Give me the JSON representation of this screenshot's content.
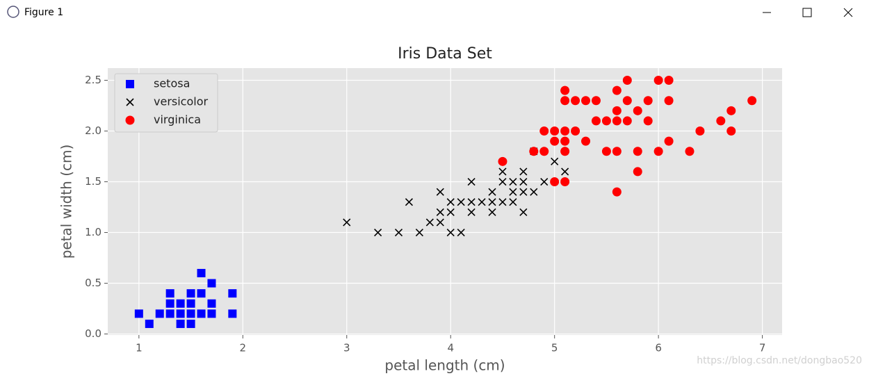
{
  "window": {
    "title": "Figure 1"
  },
  "watermark": "https://blog.csdn.net/dongbao520",
  "chart_data": {
    "type": "scatter",
    "title": "Iris Data Set",
    "x_label": "petal length (cm)",
    "y_label": "petal width (cm)",
    "xlim": [
      0.7,
      7.19
    ],
    "ylim": [
      -0.01,
      2.62
    ],
    "xticks": [
      1,
      2,
      3,
      4,
      5,
      6,
      7
    ],
    "yticks": [
      {
        "value": 0,
        "label": "0.0"
      },
      {
        "value": 0.5,
        "label": "0.5"
      },
      {
        "value": 1,
        "label": "1.0"
      },
      {
        "value": 1.5,
        "label": "1.5"
      },
      {
        "value": 2,
        "label": "2.0"
      },
      {
        "value": 2.5,
        "label": "2.5"
      }
    ],
    "grid": true,
    "legend": "upper left",
    "series": [
      {
        "name": "setosa",
        "color": "#0000ff",
        "marker": "square",
        "x": [
          1.0,
          1.1,
          1.2,
          1.3,
          1.3,
          1.3,
          1.4,
          1.4,
          1.4,
          1.5,
          1.5,
          1.5,
          1.5,
          1.6,
          1.6,
          1.6,
          1.7,
          1.7,
          1.7,
          1.9,
          1.9
        ],
        "values": [
          0.2,
          0.1,
          0.2,
          0.2,
          0.3,
          0.4,
          0.1,
          0.2,
          0.3,
          0.1,
          0.2,
          0.3,
          0.4,
          0.2,
          0.4,
          0.6,
          0.2,
          0.3,
          0.5,
          0.2,
          0.4
        ]
      },
      {
        "name": "versicolor",
        "color": "#000000",
        "marker": "x",
        "x": [
          3.0,
          3.3,
          3.5,
          3.6,
          3.7,
          3.8,
          3.9,
          3.9,
          3.9,
          4.0,
          4.0,
          4.0,
          4.1,
          4.1,
          4.2,
          4.2,
          4.2,
          4.3,
          4.4,
          4.4,
          4.4,
          4.5,
          4.5,
          4.5,
          4.6,
          4.6,
          4.6,
          4.7,
          4.7,
          4.7,
          4.7,
          4.8,
          4.8,
          4.9,
          5.0,
          5.1
        ],
        "values": [
          1.1,
          1.0,
          1.0,
          1.3,
          1.0,
          1.1,
          1.1,
          1.2,
          1.4,
          1.0,
          1.2,
          1.3,
          1.0,
          1.3,
          1.2,
          1.3,
          1.5,
          1.3,
          1.2,
          1.3,
          1.4,
          1.3,
          1.5,
          1.6,
          1.3,
          1.4,
          1.5,
          1.2,
          1.4,
          1.5,
          1.6,
          1.4,
          1.8,
          1.5,
          1.7,
          1.6
        ]
      },
      {
        "name": "virginica",
        "color": "#ff0000",
        "marker": "circle",
        "x": [
          4.5,
          4.8,
          4.9,
          4.9,
          5.0,
          5.0,
          5.0,
          5.1,
          5.1,
          5.1,
          5.1,
          5.1,
          5.1,
          5.2,
          5.2,
          5.3,
          5.3,
          5.4,
          5.4,
          5.5,
          5.5,
          5.6,
          5.6,
          5.6,
          5.6,
          5.6,
          5.7,
          5.7,
          5.7,
          5.8,
          5.8,
          5.8,
          5.9,
          5.9,
          6.0,
          6.0,
          6.1,
          6.1,
          6.1,
          6.3,
          6.4,
          6.6,
          6.7,
          6.7,
          6.9
        ],
        "values": [
          1.7,
          1.8,
          1.8,
          2.0,
          1.5,
          1.9,
          2.0,
          1.5,
          1.8,
          1.9,
          2.0,
          2.3,
          2.4,
          2.0,
          2.3,
          1.9,
          2.3,
          2.1,
          2.3,
          1.8,
          2.1,
          1.4,
          1.8,
          2.1,
          2.2,
          2.4,
          2.1,
          2.3,
          2.5,
          1.6,
          1.8,
          2.2,
          2.1,
          2.3,
          1.8,
          2.5,
          1.9,
          2.3,
          2.5,
          1.8,
          2.0,
          2.1,
          2.0,
          2.2,
          2.3
        ]
      }
    ]
  }
}
